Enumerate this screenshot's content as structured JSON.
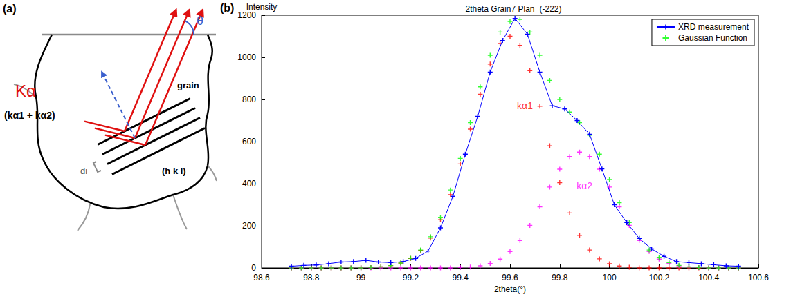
{
  "diagram": {
    "label": "(a)",
    "beam": "Kα",
    "beam_components": "(kα1 + kα2)",
    "angle": "θ",
    "region": "grain",
    "planes": "(h k l)",
    "spacing": "di"
  },
  "chart_data": {
    "type": "line",
    "panel_label": "(b)",
    "title": "2theta Grain7 Plan=(-222)",
    "x_label": "2theta(°)",
    "y_label": "Intensity",
    "xlim": [
      98.6,
      100.6
    ],
    "xticks": [
      98.6,
      98.8,
      99,
      99.2,
      99.4,
      99.6,
      99.8,
      100,
      100.2,
      100.4,
      100.6
    ],
    "ylim": [
      0,
      1200
    ],
    "yticks": [
      0,
      200,
      400,
      600,
      800,
      1000,
      1200
    ],
    "grid": false,
    "legend": "upper right",
    "series": [
      {
        "name": "XRD measurement",
        "type": "line",
        "color": "#0000ff",
        "marker": "plus",
        "line_style": "solid",
        "x": [
          98.72,
          98.77,
          98.82,
          98.87,
          98.92,
          98.97,
          99.02,
          99.07,
          99.12,
          99.17,
          99.22,
          99.27,
          99.32,
          99.37,
          99.42,
          99.47,
          99.52,
          99.57,
          99.62,
          99.67,
          99.72,
          99.77,
          99.82,
          99.87,
          99.92,
          99.97,
          100.02,
          100.07,
          100.12,
          100.17,
          100.22,
          100.27,
          100.32,
          100.37,
          100.42,
          100.47,
          100.52
        ],
        "values": [
          8,
          12,
          14,
          20,
          28,
          30,
          36,
          28,
          25,
          30,
          45,
          80,
          190,
          340,
          540,
          720,
          930,
          1080,
          1185,
          1110,
          930,
          770,
          755,
          700,
          635,
          470,
          300,
          215,
          140,
          90,
          55,
          30,
          25,
          20,
          15,
          10,
          8
        ]
      },
      {
        "name": "Gaussian Function",
        "type": "scatter",
        "color": "#00ff00",
        "marker": "plus",
        "x": [
          98.72,
          98.76,
          98.8,
          98.84,
          98.88,
          98.92,
          98.96,
          99,
          99.04,
          99.08,
          99.12,
          99.16,
          99.2,
          99.24,
          99.28,
          99.32,
          99.36,
          99.4,
          99.44,
          99.48,
          99.52,
          99.56,
          99.6,
          99.64,
          99.68,
          99.72,
          99.76,
          99.8,
          99.84,
          99.88,
          99.92,
          99.96,
          100,
          100.04,
          100.08,
          100.12,
          100.16,
          100.2,
          100.24,
          100.28,
          100.32,
          100.36,
          100.4,
          100.44,
          100.48,
          100.52
        ],
        "values": [
          0,
          0,
          0,
          0,
          0,
          0,
          0,
          0,
          2,
          5,
          11,
          23,
          46,
          85,
          148,
          240,
          370,
          520,
          690,
          860,
          1010,
          1120,
          1170,
          1180,
          1120,
          1010,
          890,
          800,
          740,
          690,
          630,
          540,
          420,
          310,
          215,
          140,
          85,
          50,
          25,
          12,
          5,
          2,
          0,
          0,
          0,
          0
        ]
      }
    ],
    "components": [
      {
        "name": "kα1",
        "type": "scatter",
        "color": "#ff0000",
        "marker": "plus",
        "label_x": 99.66,
        "label_y": 770,
        "x": [
          98.72,
          98.76,
          98.8,
          98.84,
          98.88,
          98.92,
          98.96,
          99,
          99.04,
          99.08,
          99.12,
          99.16,
          99.2,
          99.24,
          99.28,
          99.32,
          99.36,
          99.4,
          99.44,
          99.48,
          99.52,
          99.56,
          99.6,
          99.64,
          99.68,
          99.72,
          99.76,
          99.8,
          99.84,
          99.88,
          99.92,
          99.96,
          100,
          100.04,
          100.08,
          100.12,
          100.16,
          100.2,
          100.24,
          100.28,
          100.32,
          100.36,
          100.4,
          100.44,
          100.48,
          100.52
        ],
        "values": [
          0,
          0,
          0,
          0,
          0,
          0,
          0,
          1,
          2,
          5,
          11,
          23,
          45,
          83,
          142,
          229,
          348,
          494,
          659,
          825,
          968,
          1066,
          1100,
          1057,
          937,
          768,
          580,
          405,
          261,
          155,
          85,
          43,
          20,
          9,
          3,
          0,
          0,
          0,
          0,
          0,
          0,
          0,
          0,
          0,
          0,
          0
        ]
      },
      {
        "name": "kα2",
        "type": "scatter",
        "color": "#ff00ff",
        "marker": "plus",
        "label_x": 99.9,
        "label_y": 390,
        "x": [
          98.72,
          98.76,
          98.8,
          98.84,
          98.88,
          98.92,
          98.96,
          99,
          99.04,
          99.08,
          99.12,
          99.16,
          99.2,
          99.24,
          99.28,
          99.32,
          99.36,
          99.4,
          99.44,
          99.48,
          99.52,
          99.56,
          99.6,
          99.64,
          99.68,
          99.72,
          99.76,
          99.8,
          99.84,
          99.88,
          99.92,
          99.96,
          100,
          100.04,
          100.08,
          100.12,
          100.16,
          100.2,
          100.24,
          100.28,
          100.32,
          100.36,
          100.4,
          100.44,
          100.48,
          100.52
        ],
        "values": [
          0,
          0,
          0,
          0,
          0,
          0,
          0,
          0,
          0,
          0,
          0,
          0,
          0,
          0,
          0,
          0,
          0,
          2,
          4,
          10,
          21,
          42,
          78,
          130,
          202,
          290,
          384,
          469,
          529,
          550,
          529,
          469,
          384,
          290,
          202,
          130,
          78,
          42,
          21,
          10,
          4,
          2,
          0,
          0,
          0,
          0
        ]
      }
    ]
  }
}
